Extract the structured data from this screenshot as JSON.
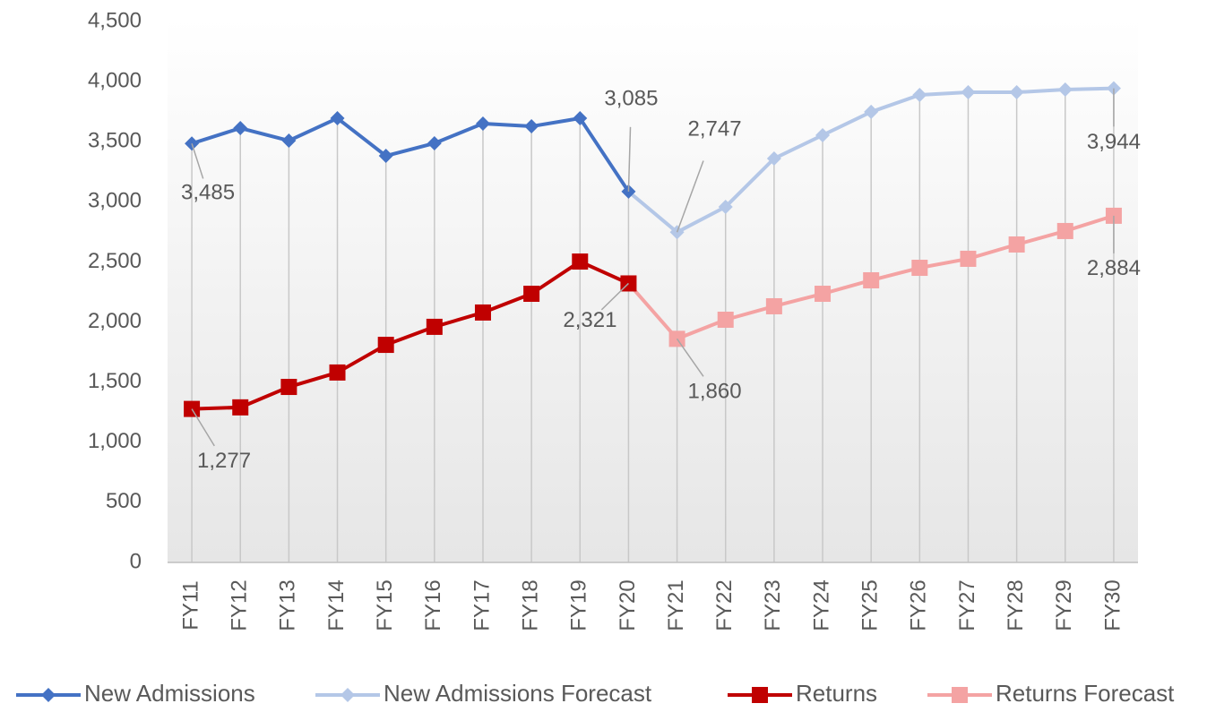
{
  "chart_data": {
    "type": "line",
    "categories": [
      "FY11",
      "FY12",
      "FY13",
      "FY14",
      "FY15",
      "FY16",
      "FY17",
      "FY18",
      "FY19",
      "FY20",
      "FY21",
      "FY22",
      "FY23",
      "FY24",
      "FY25",
      "FY26",
      "FY27",
      "FY28",
      "FY29",
      "FY30"
    ],
    "ylim": [
      0,
      4500
    ],
    "yticks": [
      0,
      500,
      {
        "value": 1000,
        "label": "1,000"
      },
      {
        "value": 1500,
        "label": "1,500"
      },
      {
        "value": 2000,
        "label": "2,000"
      },
      {
        "value": 2500,
        "label": "2,500"
      },
      {
        "value": 3000,
        "label": "3,000"
      },
      {
        "value": 3500,
        "label": "3,500"
      },
      {
        "value": 4000,
        "label": "4,000"
      },
      {
        "value": 4500,
        "label": "4,500"
      }
    ],
    "legend": "bottom",
    "series": [
      {
        "name": "New Admissions",
        "color": "#4472c4",
        "marker": "diamond",
        "values": [
          3485,
          3613,
          3509,
          3695,
          3382,
          3487,
          3651,
          3628,
          3695,
          3085,
          null,
          null,
          null,
          null,
          null,
          null,
          null,
          null,
          null,
          null
        ],
        "value_labels": [
          "3,485",
          null,
          null,
          null,
          null,
          null,
          null,
          null,
          null,
          "3,085",
          null,
          null,
          null,
          null,
          null,
          null,
          null,
          null,
          null,
          null
        ]
      },
      {
        "name": "New Admissions Forecast",
        "color": "#b4c7e7",
        "marker": "diamond",
        "values": [
          null,
          null,
          null,
          null,
          null,
          null,
          null,
          null,
          null,
          3085,
          2747,
          2958,
          3360,
          3554,
          3748,
          3889,
          3911,
          3911,
          3934,
          3944
        ],
        "value_labels": [
          null,
          null,
          null,
          null,
          null,
          null,
          null,
          null,
          null,
          null,
          "2,747",
          null,
          null,
          null,
          null,
          null,
          null,
          null,
          null,
          "3,944"
        ]
      },
      {
        "name": "Returns",
        "color": "#c00000",
        "marker": "square",
        "values": [
          1277,
          1290,
          1460,
          1580,
          1810,
          1960,
          2079,
          2235,
          2503,
          2321,
          null,
          null,
          null,
          null,
          null,
          null,
          null,
          null,
          null,
          null
        ],
        "value_labels": [
          "1,277",
          null,
          null,
          null,
          null,
          null,
          null,
          null,
          null,
          "2,321",
          null,
          null,
          null,
          null,
          null,
          null,
          null,
          null,
          null,
          null
        ]
      },
      {
        "name": "Returns Forecast",
        "color": "#f4a3a3",
        "marker": "square",
        "values": [
          null,
          null,
          null,
          null,
          null,
          null,
          null,
          null,
          null,
          2321,
          1860,
          2019,
          2131,
          2235,
          2347,
          2451,
          2526,
          2645,
          2757,
          2884
        ],
        "value_labels": [
          null,
          null,
          null,
          null,
          null,
          null,
          null,
          null,
          null,
          null,
          "1,860",
          null,
          null,
          null,
          null,
          null,
          null,
          null,
          null,
          "2,884"
        ]
      }
    ]
  }
}
